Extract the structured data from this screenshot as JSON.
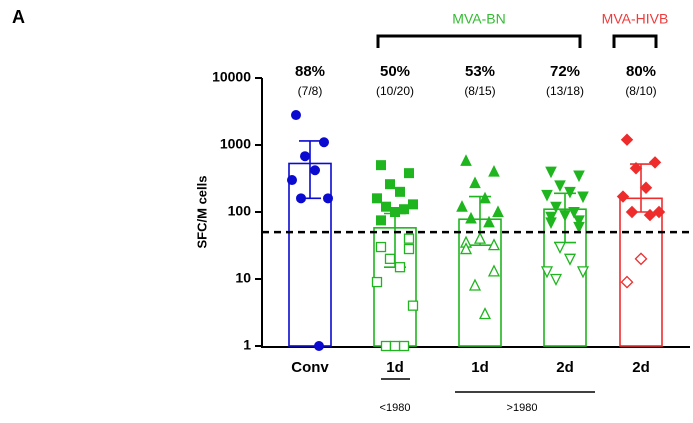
{
  "chart_data": {
    "type": "bar",
    "panel_label": "A",
    "ylabel": "SFC/M cells",
    "log_scale": true,
    "ylim": [
      1,
      10000
    ],
    "yticks": [
      1,
      10,
      100,
      1000,
      10000
    ],
    "threshold": 50,
    "categories": [
      "Conv",
      "1d",
      "1d",
      "2d",
      "2d"
    ],
    "colors": [
      "#0a0ad0",
      "#1fb51f",
      "#1fb51f",
      "#1fb51f",
      "#ee2c2c"
    ],
    "markers": [
      "circle",
      "square",
      "triangle-up",
      "triangle-down",
      "diamond"
    ],
    "values": [
      530,
      58,
      78,
      110,
      160
    ],
    "errors": [
      [
        160,
        1150
      ],
      [
        15,
        95
      ],
      [
        32,
        170
      ],
      [
        35,
        190
      ],
      [
        100,
        520
      ]
    ],
    "filled": [
      [
        2800,
        1100,
        680,
        420,
        300,
        160,
        160,
        1
      ],
      [
        500,
        380,
        260,
        200,
        160,
        130,
        120,
        110,
        100,
        75
      ],
      [
        580,
        400,
        270,
        160,
        120,
        100,
        80,
        70
      ],
      [
        400,
        350,
        250,
        200,
        180,
        170,
        120,
        100,
        90,
        85,
        75,
        70,
        60
      ],
      [
        1200,
        550,
        450,
        230,
        170,
        100,
        100,
        90
      ]
    ],
    "open": [
      [],
      [
        40,
        30,
        28,
        20,
        15,
        9,
        4,
        1,
        1,
        1
      ],
      [
        40,
        35,
        32,
        28,
        13,
        8,
        3
      ],
      [
        30,
        20,
        13,
        13,
        10
      ],
      [
        20,
        9
      ]
    ],
    "percent_labels": [
      "88%",
      "50%",
      "53%",
      "72%",
      "80%"
    ],
    "fractions": [
      "(7/8)",
      "(10/20)",
      "(8/15)",
      "(13/18)",
      "(8/10)"
    ],
    "groups": [
      {
        "label": "MVA-BN",
        "color": "#33bb33"
      },
      {
        "label": "MVA-HIVB",
        "color": "#ee3b3b"
      }
    ],
    "bottom_labels": [
      "<1980",
      ">1980"
    ]
  }
}
